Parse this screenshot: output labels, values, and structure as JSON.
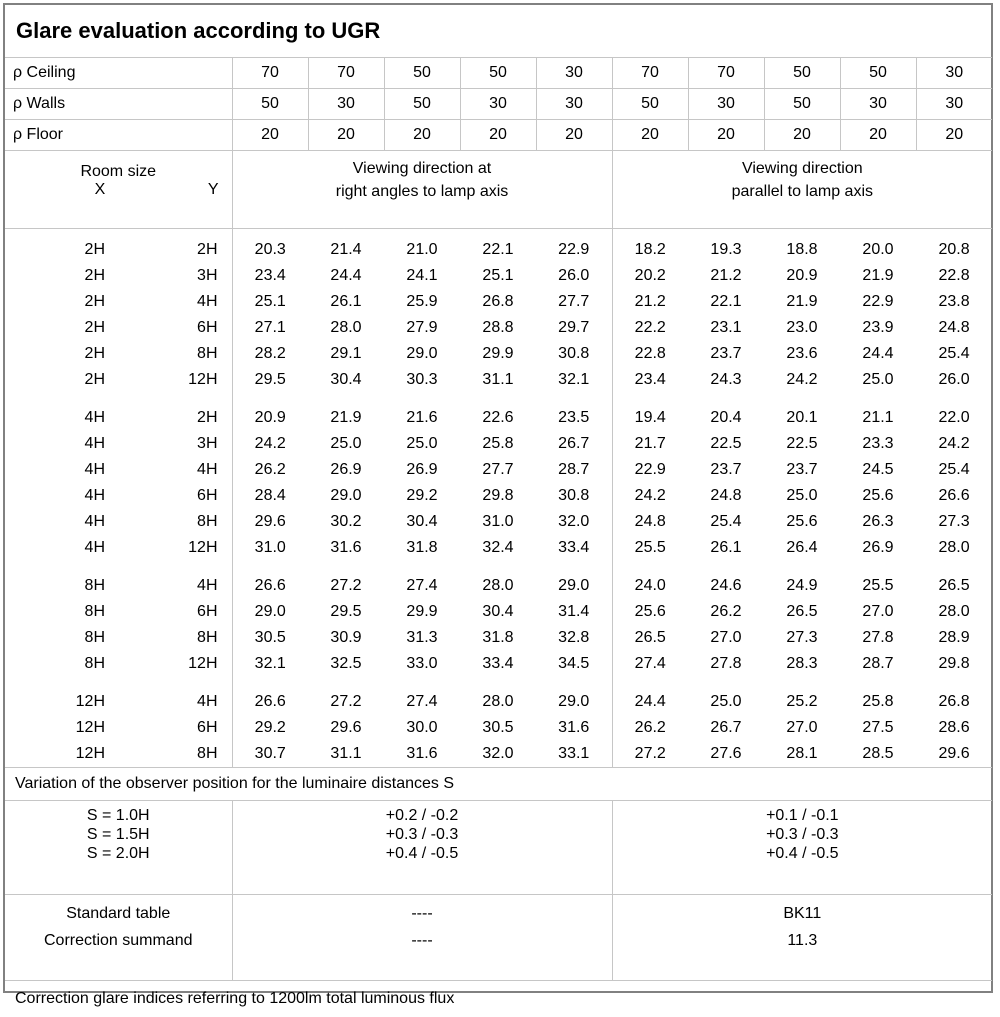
{
  "title": "Glare evaluation according to UGR",
  "reflectance_rows": [
    {
      "label": "ρ Ceiling",
      "values": [
        "70",
        "70",
        "50",
        "50",
        "30",
        "70",
        "70",
        "50",
        "50",
        "30"
      ]
    },
    {
      "label": "ρ Walls",
      "values": [
        "50",
        "30",
        "50",
        "30",
        "30",
        "50",
        "30",
        "50",
        "30",
        "30"
      ]
    },
    {
      "label": "ρ Floor",
      "values": [
        "20",
        "20",
        "20",
        "20",
        "20",
        "20",
        "20",
        "20",
        "20",
        "20"
      ]
    }
  ],
  "room_size_header": {
    "title": "Room size",
    "x": "X",
    "y": "Y"
  },
  "sections": {
    "left_line1": "Viewing direction at",
    "left_line2": "right angles to lamp axis",
    "right_line1": "Viewing direction",
    "right_line2": "parallel to lamp axis"
  },
  "ugr_blocks": [
    {
      "rows": [
        {
          "x": "2H",
          "y": "2H",
          "right_angles": [
            "20.3",
            "21.4",
            "21.0",
            "22.1",
            "22.9"
          ],
          "parallel": [
            "18.2",
            "19.3",
            "18.8",
            "20.0",
            "20.8"
          ]
        },
        {
          "x": "2H",
          "y": "3H",
          "right_angles": [
            "23.4",
            "24.4",
            "24.1",
            "25.1",
            "26.0"
          ],
          "parallel": [
            "20.2",
            "21.2",
            "20.9",
            "21.9",
            "22.8"
          ]
        },
        {
          "x": "2H",
          "y": "4H",
          "right_angles": [
            "25.1",
            "26.1",
            "25.9",
            "26.8",
            "27.7"
          ],
          "parallel": [
            "21.2",
            "22.1",
            "21.9",
            "22.9",
            "23.8"
          ]
        },
        {
          "x": "2H",
          "y": "6H",
          "right_angles": [
            "27.1",
            "28.0",
            "27.9",
            "28.8",
            "29.7"
          ],
          "parallel": [
            "22.2",
            "23.1",
            "23.0",
            "23.9",
            "24.8"
          ]
        },
        {
          "x": "2H",
          "y": "8H",
          "right_angles": [
            "28.2",
            "29.1",
            "29.0",
            "29.9",
            "30.8"
          ],
          "parallel": [
            "22.8",
            "23.7",
            "23.6",
            "24.4",
            "25.4"
          ]
        },
        {
          "x": "2H",
          "y": "12H",
          "right_angles": [
            "29.5",
            "30.4",
            "30.3",
            "31.1",
            "32.1"
          ],
          "parallel": [
            "23.4",
            "24.3",
            "24.2",
            "25.0",
            "26.0"
          ]
        }
      ]
    },
    {
      "rows": [
        {
          "x": "4H",
          "y": "2H",
          "right_angles": [
            "20.9",
            "21.9",
            "21.6",
            "22.6",
            "23.5"
          ],
          "parallel": [
            "19.4",
            "20.4",
            "20.1",
            "21.1",
            "22.0"
          ]
        },
        {
          "x": "4H",
          "y": "3H",
          "right_angles": [
            "24.2",
            "25.0",
            "25.0",
            "25.8",
            "26.7"
          ],
          "parallel": [
            "21.7",
            "22.5",
            "22.5",
            "23.3",
            "24.2"
          ]
        },
        {
          "x": "4H",
          "y": "4H",
          "right_angles": [
            "26.2",
            "26.9",
            "26.9",
            "27.7",
            "28.7"
          ],
          "parallel": [
            "22.9",
            "23.7",
            "23.7",
            "24.5",
            "25.4"
          ]
        },
        {
          "x": "4H",
          "y": "6H",
          "right_angles": [
            "28.4",
            "29.0",
            "29.2",
            "29.8",
            "30.8"
          ],
          "parallel": [
            "24.2",
            "24.8",
            "25.0",
            "25.6",
            "26.6"
          ]
        },
        {
          "x": "4H",
          "y": "8H",
          "right_angles": [
            "29.6",
            "30.2",
            "30.4",
            "31.0",
            "32.0"
          ],
          "parallel": [
            "24.8",
            "25.4",
            "25.6",
            "26.3",
            "27.3"
          ]
        },
        {
          "x": "4H",
          "y": "12H",
          "right_angles": [
            "31.0",
            "31.6",
            "31.8",
            "32.4",
            "33.4"
          ],
          "parallel": [
            "25.5",
            "26.1",
            "26.4",
            "26.9",
            "28.0"
          ]
        }
      ]
    },
    {
      "rows": [
        {
          "x": "8H",
          "y": "4H",
          "right_angles": [
            "26.6",
            "27.2",
            "27.4",
            "28.0",
            "29.0"
          ],
          "parallel": [
            "24.0",
            "24.6",
            "24.9",
            "25.5",
            "26.5"
          ]
        },
        {
          "x": "8H",
          "y": "6H",
          "right_angles": [
            "29.0",
            "29.5",
            "29.9",
            "30.4",
            "31.4"
          ],
          "parallel": [
            "25.6",
            "26.2",
            "26.5",
            "27.0",
            "28.0"
          ]
        },
        {
          "x": "8H",
          "y": "8H",
          "right_angles": [
            "30.5",
            "30.9",
            "31.3",
            "31.8",
            "32.8"
          ],
          "parallel": [
            "26.5",
            "27.0",
            "27.3",
            "27.8",
            "28.9"
          ]
        },
        {
          "x": "8H",
          "y": "12H",
          "right_angles": [
            "32.1",
            "32.5",
            "33.0",
            "33.4",
            "34.5"
          ],
          "parallel": [
            "27.4",
            "27.8",
            "28.3",
            "28.7",
            "29.8"
          ]
        }
      ]
    },
    {
      "rows": [
        {
          "x": "12H",
          "y": "4H",
          "right_angles": [
            "26.6",
            "27.2",
            "27.4",
            "28.0",
            "29.0"
          ],
          "parallel": [
            "24.4",
            "25.0",
            "25.2",
            "25.8",
            "26.8"
          ]
        },
        {
          "x": "12H",
          "y": "6H",
          "right_angles": [
            "29.2",
            "29.6",
            "30.0",
            "30.5",
            "31.6"
          ],
          "parallel": [
            "26.2",
            "26.7",
            "27.0",
            "27.5",
            "28.6"
          ]
        },
        {
          "x": "12H",
          "y": "8H",
          "right_angles": [
            "30.7",
            "31.1",
            "31.6",
            "32.0",
            "33.1"
          ],
          "parallel": [
            "27.2",
            "27.6",
            "28.1",
            "28.5",
            "29.6"
          ]
        }
      ]
    }
  ],
  "variation": {
    "note": "Variation of the observer position for the luminaire distances S",
    "rows": [
      {
        "label": "S = 1.0H",
        "right_angles": "+0.2 / -0.2",
        "parallel": "+0.1 / -0.1"
      },
      {
        "label": "S = 1.5H",
        "right_angles": "+0.3 / -0.3",
        "parallel": "+0.3 / -0.3"
      },
      {
        "label": "S = 2.0H",
        "right_angles": "+0.4 / -0.5",
        "parallel": "+0.4 / -0.5"
      }
    ]
  },
  "summary": {
    "rows": [
      {
        "label": "Standard table",
        "right_angles": "----",
        "parallel": "BK11"
      },
      {
        "label": "Correction summand",
        "right_angles": "----",
        "parallel": "11.3"
      }
    ]
  },
  "footer": "Correction glare indices referring to 1200lm total luminous flux"
}
